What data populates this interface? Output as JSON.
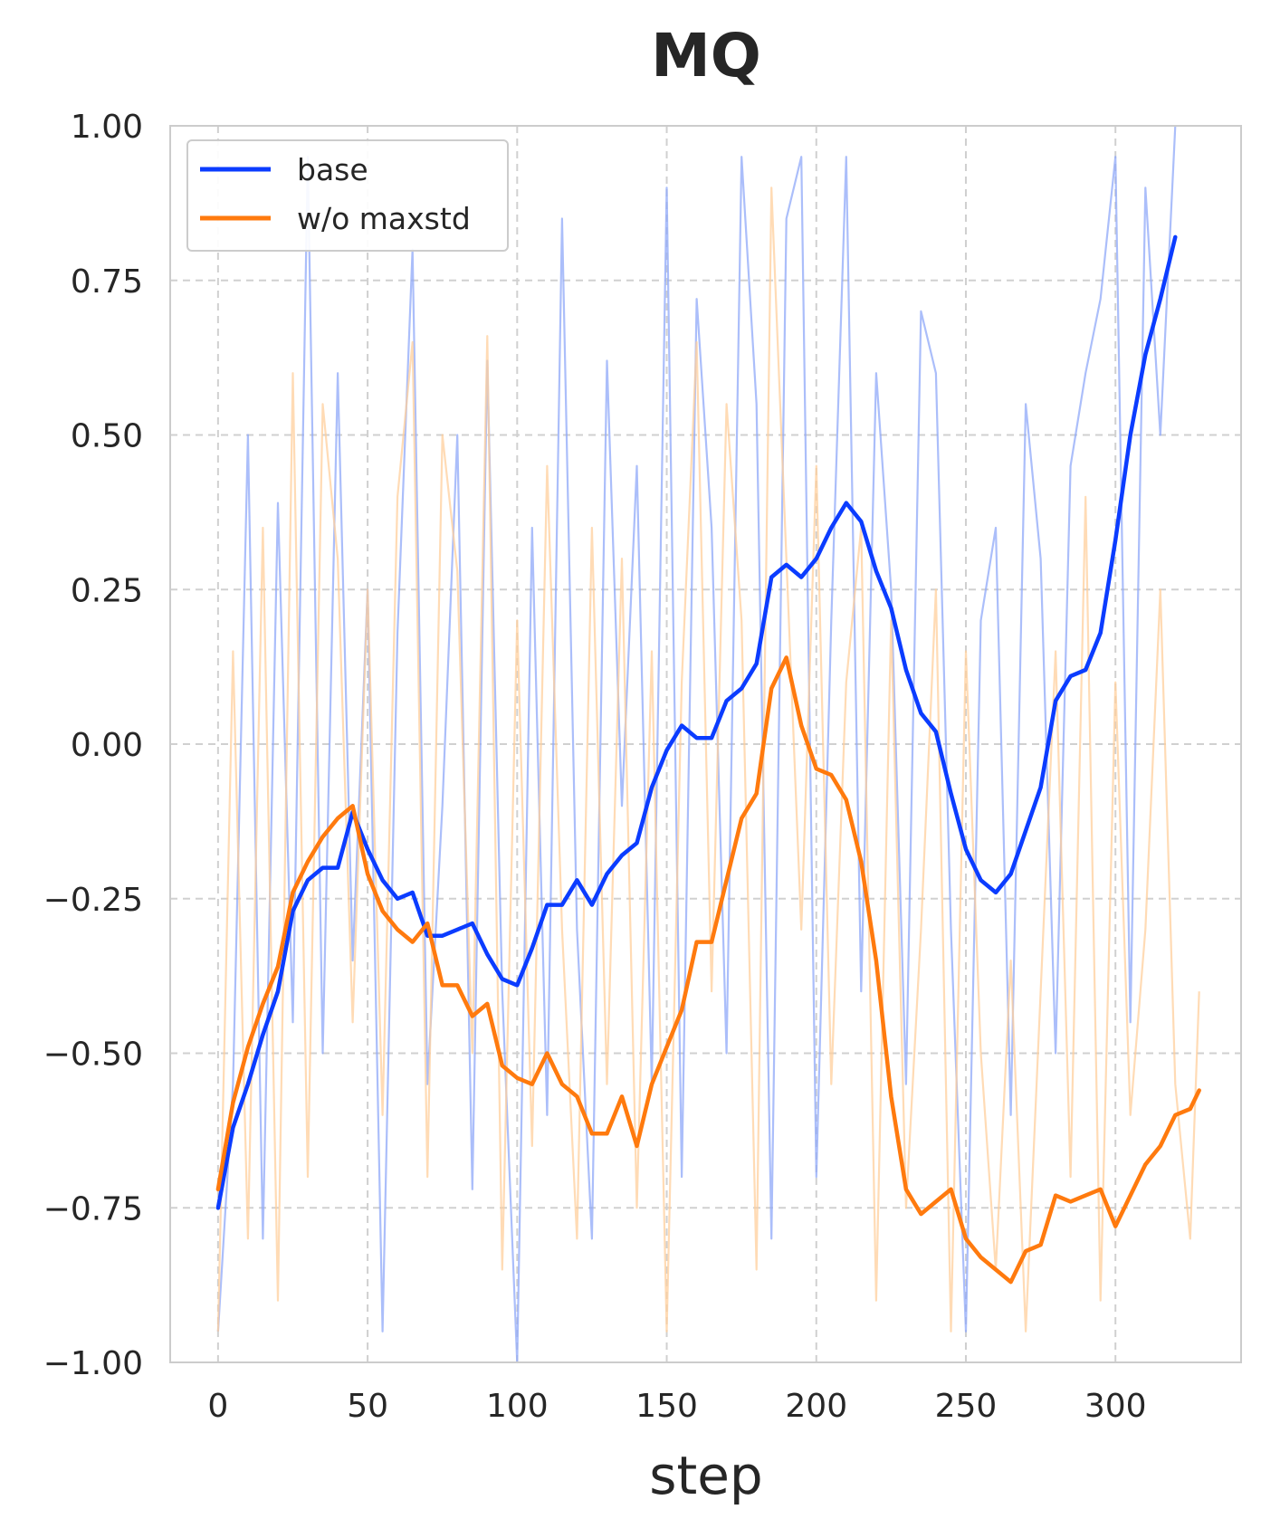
{
  "chart_data": {
    "type": "line",
    "title": "MQ",
    "xlabel": "step",
    "ylabel": "",
    "xlim": [
      -16,
      342
    ],
    "ylim": [
      -1.0,
      1.0
    ],
    "xticks": [
      0,
      50,
      100,
      150,
      200,
      250,
      300
    ],
    "xtick_labels": [
      "0",
      "50",
      "100",
      "150",
      "200",
      "250",
      "300"
    ],
    "yticks": [
      1.0,
      0.75,
      0.5,
      0.25,
      0.0,
      -0.25,
      -0.5,
      -0.75,
      -1.0
    ],
    "ytick_labels": [
      "1.00",
      "0.75",
      "0.50",
      "0.25",
      "0.00",
      "−0.25",
      "−0.50",
      "−0.75",
      "−1.00"
    ],
    "grid": true,
    "legend": {
      "position": "top-left",
      "entries": [
        "base",
        "w/o maxstd"
      ]
    },
    "series": [
      {
        "name": "base",
        "color": "#0b3cff",
        "raw_color": "#8fa8f8",
        "x": [
          0,
          5,
          10,
          15,
          20,
          25,
          30,
          35,
          40,
          45,
          50,
          55,
          60,
          65,
          70,
          75,
          80,
          85,
          90,
          95,
          100,
          105,
          110,
          115,
          120,
          125,
          130,
          135,
          140,
          145,
          150,
          155,
          160,
          165,
          170,
          175,
          180,
          185,
          190,
          195,
          200,
          205,
          210,
          215,
          220,
          225,
          230,
          235,
          240,
          245,
          250,
          255,
          260,
          265,
          270,
          275,
          280,
          285,
          290,
          295,
          300,
          305,
          310,
          315,
          320
        ],
        "values": [
          -0.75,
          -0.62,
          -0.55,
          -0.47,
          -0.4,
          -0.27,
          -0.22,
          -0.2,
          -0.2,
          -0.11,
          -0.17,
          -0.22,
          -0.25,
          -0.24,
          -0.31,
          -0.31,
          -0.3,
          -0.29,
          -0.34,
          -0.38,
          -0.39,
          -0.33,
          -0.26,
          -0.26,
          -0.22,
          -0.26,
          -0.21,
          -0.18,
          -0.16,
          -0.07,
          -0.01,
          0.03,
          0.01,
          0.01,
          0.07,
          0.09,
          0.13,
          0.27,
          0.29,
          0.27,
          0.3,
          0.35,
          0.39,
          0.36,
          0.28,
          0.22,
          0.12,
          0.05,
          0.02,
          -0.08,
          -0.17,
          -0.22,
          -0.24,
          -0.21,
          -0.14,
          -0.07,
          0.07,
          0.11,
          0.12,
          0.18,
          0.33,
          0.5,
          0.63,
          0.72,
          0.82
        ],
        "raw_values": [
          -0.95,
          -0.55,
          0.5,
          -0.8,
          0.39,
          -0.45,
          0.95,
          -0.5,
          0.6,
          -0.35,
          0.25,
          -0.95,
          0.18,
          0.8,
          -0.55,
          -0.1,
          0.5,
          -0.72,
          0.62,
          -0.4,
          -1.0,
          0.35,
          -0.6,
          0.85,
          -0.3,
          -0.8,
          0.62,
          -0.1,
          0.45,
          -0.55,
          0.9,
          -0.7,
          0.72,
          0.35,
          -0.5,
          0.95,
          0.55,
          -0.8,
          0.85,
          0.95,
          -0.7,
          0.2,
          0.95,
          -0.4,
          0.6,
          0.25,
          -0.55,
          0.7,
          0.6,
          -0.3,
          -0.95,
          0.2,
          0.35,
          -0.6,
          0.55,
          0.3,
          -0.5,
          0.45,
          0.6,
          0.72,
          0.95,
          -0.45,
          0.9,
          0.5,
          1.0
        ]
      },
      {
        "name": "w/o maxstd",
        "color": "#ff7a0e",
        "raw_color": "#ffcf9c",
        "x": [
          0,
          5,
          10,
          15,
          20,
          25,
          30,
          35,
          40,
          45,
          50,
          55,
          60,
          65,
          70,
          75,
          80,
          85,
          90,
          95,
          100,
          105,
          110,
          115,
          120,
          125,
          130,
          135,
          140,
          145,
          150,
          155,
          160,
          165,
          170,
          175,
          180,
          185,
          190,
          195,
          200,
          205,
          210,
          215,
          220,
          225,
          230,
          235,
          240,
          245,
          250,
          255,
          260,
          265,
          270,
          275,
          280,
          285,
          290,
          295,
          300,
          305,
          310,
          315,
          320,
          325,
          328
        ],
        "values": [
          -0.72,
          -0.58,
          -0.49,
          -0.42,
          -0.36,
          -0.24,
          -0.19,
          -0.15,
          -0.12,
          -0.1,
          -0.21,
          -0.27,
          -0.3,
          -0.32,
          -0.29,
          -0.39,
          -0.39,
          -0.44,
          -0.42,
          -0.52,
          -0.54,
          -0.55,
          -0.5,
          -0.55,
          -0.57,
          -0.63,
          -0.63,
          -0.57,
          -0.65,
          -0.55,
          -0.49,
          -0.43,
          -0.32,
          -0.32,
          -0.22,
          -0.12,
          -0.08,
          0.09,
          0.14,
          0.03,
          -0.04,
          -0.05,
          -0.09,
          -0.19,
          -0.35,
          -0.57,
          -0.72,
          -0.76,
          -0.74,
          -0.72,
          -0.8,
          -0.83,
          -0.85,
          -0.87,
          -0.82,
          -0.81,
          -0.73,
          -0.74,
          -0.73,
          -0.72,
          -0.78,
          -0.73,
          -0.68,
          -0.65,
          -0.6,
          -0.59,
          -0.56
        ],
        "raw_values": [
          -0.95,
          0.15,
          -0.8,
          0.35,
          -0.9,
          0.6,
          -0.7,
          0.55,
          0.3,
          -0.45,
          0.25,
          -0.6,
          0.4,
          0.65,
          -0.7,
          0.5,
          0.28,
          -0.5,
          0.66,
          -0.85,
          0.2,
          -0.65,
          0.45,
          -0.3,
          -0.8,
          0.35,
          -0.55,
          0.3,
          -0.75,
          0.15,
          -0.95,
          0.1,
          0.65,
          -0.4,
          0.55,
          0.2,
          -0.85,
          0.9,
          0.3,
          -0.3,
          0.45,
          -0.55,
          0.1,
          0.35,
          -0.9,
          0.2,
          -0.75,
          -0.3,
          0.25,
          -0.95,
          0.15,
          -0.5,
          -0.85,
          -0.35,
          -0.95,
          -0.4,
          0.15,
          -0.7,
          0.4,
          -0.9,
          0.1,
          -0.6,
          -0.3,
          0.25,
          -0.55,
          -0.8,
          -0.4
        ]
      }
    ]
  }
}
